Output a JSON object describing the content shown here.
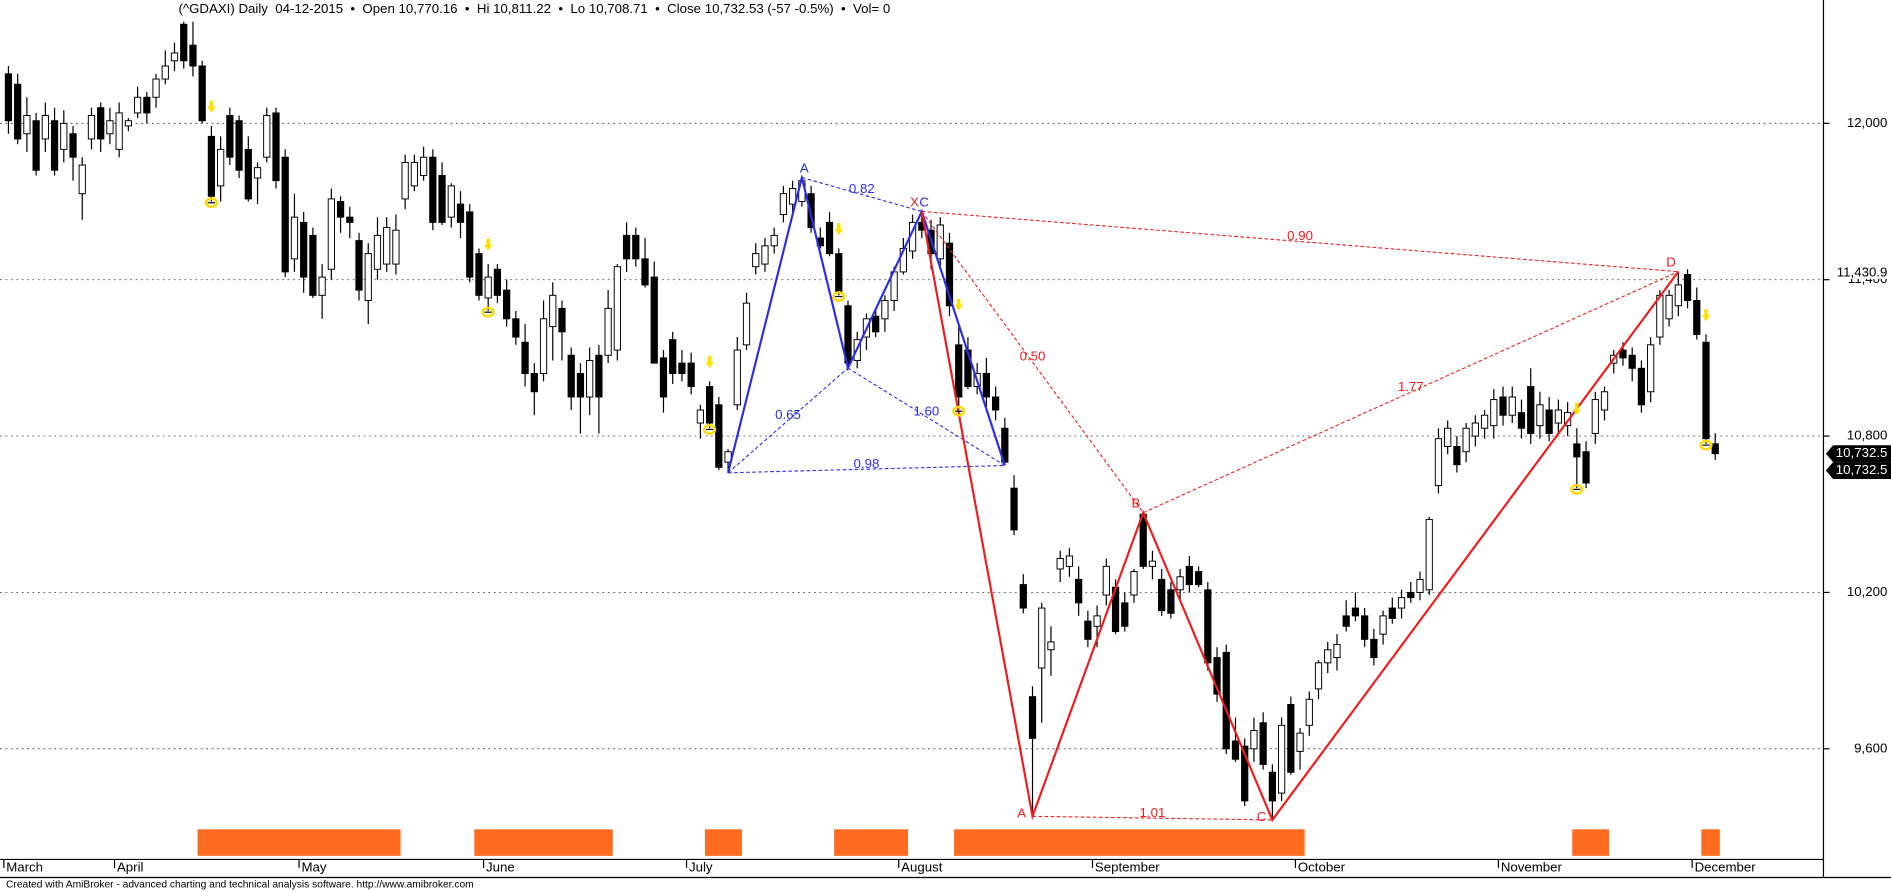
{
  "chart_data": {
    "type": "candlestick",
    "title": "(^GDAXI) Daily  04-12-2015  •  Open 10,770.16  •  Hi 10,811.22  •  Lo 10,708.71  •  Close 10,732.53 (-57 -0.5%)  •  Vol= 0",
    "footer": "Created with AmiBroker - advanced charting and technical analysis software. http://www.amibroker.com",
    "ylim": [
      9180,
      12390
    ],
    "yticks": [
      {
        "value": 9600,
        "label": "9,600"
      },
      {
        "value": 10200,
        "label": "10,200"
      },
      {
        "value": 10800,
        "label": "10,800"
      },
      {
        "value": 11400,
        "label": "11,400"
      },
      {
        "value": 12000,
        "label": "12,000"
      }
    ],
    "grid": true,
    "level_label": {
      "value": 11430.9,
      "label": "11,430.9"
    },
    "last_price_labels": [
      {
        "value": 10732.5,
        "label": "10,732.5"
      },
      {
        "value": 10732.5,
        "label": "10,732.5"
      }
    ],
    "up_color": "#ffffff",
    "down_color": "#000000",
    "categories": [
      "March",
      null,
      null,
      null,
      null,
      null,
      null,
      null,
      null,
      null,
      null,
      null,
      "April",
      null,
      null,
      null,
      null,
      null,
      null,
      null,
      null,
      null,
      null,
      null,
      null,
      null,
      null,
      null,
      null,
      null,
      null,
      null,
      "May",
      null,
      null,
      null,
      null,
      null,
      null,
      null,
      null,
      null,
      null,
      null,
      null,
      null,
      null,
      null,
      null,
      null,
      null,
      null,
      "June",
      null,
      null,
      null,
      null,
      null,
      null,
      null,
      null,
      null,
      null,
      null,
      null,
      null,
      null,
      null,
      null,
      null,
      null,
      null,
      null,
      null,
      "July",
      null,
      null,
      null,
      null,
      null,
      null,
      null,
      null,
      null,
      null,
      null,
      null,
      null,
      null,
      null,
      null,
      null,
      null,
      null,
      null,
      null,
      null,
      "August",
      null,
      null,
      null,
      null,
      null,
      null,
      null,
      null,
      null,
      null,
      null,
      null,
      null,
      null,
      null,
      null,
      null,
      null,
      null,
      null,
      "September",
      null,
      null,
      null,
      null,
      null,
      null,
      null,
      null,
      null,
      null,
      null,
      null,
      null,
      null,
      null,
      null,
      null,
      null,
      null,
      null,
      null,
      "October",
      null,
      null,
      null,
      null,
      null,
      null,
      null,
      null,
      null,
      null,
      null,
      null,
      null,
      null,
      null,
      null,
      null,
      null,
      null,
      null,
      null,
      "November",
      null,
      null,
      null,
      null,
      null,
      null,
      null,
      null,
      null,
      null,
      null,
      null,
      null,
      null,
      null,
      null,
      null,
      null,
      null,
      null,
      "December",
      null,
      null
    ],
    "values": [
      [
        12190,
        12220,
        11960,
        12010
      ],
      [
        12150,
        12190,
        11920,
        11940
      ],
      [
        11960,
        12100,
        11890,
        12030
      ],
      [
        12010,
        12040,
        11800,
        11820
      ],
      [
        11940,
        12080,
        11890,
        12030
      ],
      [
        12010,
        12060,
        11800,
        11820
      ],
      [
        11900,
        12050,
        11850,
        12000
      ],
      [
        11960,
        11990,
        11780,
        11870
      ],
      [
        11730,
        11870,
        11630,
        11840
      ],
      [
        11940,
        12060,
        11900,
        12030
      ],
      [
        12060,
        12080,
        11890,
        11940
      ],
      [
        11960,
        12060,
        11920,
        12010
      ],
      [
        11900,
        12080,
        11870,
        12040
      ],
      [
        11990,
        12020,
        11970,
        12010
      ],
      [
        12040,
        12140,
        12020,
        12100
      ],
      [
        12100,
        12120,
        12000,
        12040
      ],
      [
        12100,
        12190,
        12060,
        12170
      ],
      [
        12170,
        12280,
        12150,
        12220
      ],
      [
        12240,
        12310,
        12200,
        12270
      ],
      [
        12380,
        12390,
        12210,
        12240
      ],
      [
        12300,
        12390,
        12180,
        12220
      ],
      [
        12220,
        12240,
        12000,
        12010
      ],
      [
        11950,
        11990,
        11700,
        11720
      ],
      [
        11760,
        11950,
        11700,
        11900
      ],
      [
        12030,
        12060,
        11840,
        11870
      ],
      [
        12010,
        12030,
        11790,
        11820
      ],
      [
        11900,
        11950,
        11700,
        11710
      ],
      [
        11790,
        11850,
        11690,
        11830
      ],
      [
        11870,
        12060,
        11850,
        12030
      ],
      [
        12040,
        12060,
        11750,
        11780
      ],
      [
        11870,
        11900,
        11410,
        11430
      ],
      [
        11480,
        11730,
        11430,
        11640
      ],
      [
        11620,
        11660,
        11350,
        11410
      ],
      [
        11570,
        11600,
        11330,
        11340
      ],
      [
        11340,
        11460,
        11250,
        11410
      ],
      [
        11440,
        11750,
        11400,
        11710
      ],
      [
        11700,
        11720,
        11580,
        11640
      ],
      [
        11640,
        11680,
        11560,
        11620
      ],
      [
        11550,
        11580,
        11320,
        11360
      ],
      [
        11320,
        11540,
        11230,
        11500
      ],
      [
        11440,
        11640,
        11400,
        11570
      ],
      [
        11460,
        11640,
        11430,
        11600
      ],
      [
        11460,
        11650,
        11420,
        11590
      ],
      [
        11710,
        11880,
        11670,
        11850
      ],
      [
        11760,
        11880,
        11740,
        11850
      ],
      [
        11800,
        11910,
        11780,
        11870
      ],
      [
        11870,
        11900,
        11590,
        11620
      ],
      [
        11800,
        11850,
        11610,
        11620
      ],
      [
        11640,
        11770,
        11600,
        11760
      ],
      [
        11690,
        11740,
        11560,
        11620
      ],
      [
        11660,
        11690,
        11390,
        11410
      ],
      [
        11500,
        11520,
        11320,
        11340
      ],
      [
        11330,
        11460,
        11280,
        11410
      ],
      [
        11440,
        11460,
        11310,
        11340
      ],
      [
        11360,
        11400,
        11220,
        11250
      ],
      [
        11250,
        11280,
        11150,
        11180
      ],
      [
        11160,
        11230,
        10990,
        11040
      ],
      [
        11040,
        11080,
        10880,
        10970
      ],
      [
        11040,
        11320,
        11010,
        11250
      ],
      [
        11220,
        11390,
        11090,
        11340
      ],
      [
        11290,
        11320,
        11090,
        11200
      ],
      [
        11110,
        11140,
        10900,
        10950
      ],
      [
        11040,
        11080,
        10810,
        10950
      ],
      [
        10950,
        11140,
        10880,
        11090
      ],
      [
        11110,
        11150,
        10810,
        10950
      ],
      [
        11110,
        11360,
        11080,
        11290
      ],
      [
        11130,
        11460,
        11090,
        11450
      ],
      [
        11570,
        11620,
        11430,
        11480
      ],
      [
        11570,
        11600,
        11450,
        11480
      ],
      [
        11480,
        11560,
        11370,
        11380
      ],
      [
        11410,
        11470,
        11080,
        11080
      ],
      [
        11100,
        11130,
        10890,
        10950
      ],
      [
        11170,
        11200,
        11000,
        11040
      ],
      [
        11080,
        11130,
        11010,
        11040
      ],
      [
        11080,
        11120,
        10960,
        10990
      ],
      [
        10850,
        10920,
        10790,
        10900
      ],
      [
        10990,
        11010,
        10830,
        10850
      ],
      [
        10920,
        10950,
        10670,
        10680
      ],
      [
        10700,
        10750,
        10660,
        10740
      ],
      [
        10920,
        11180,
        10900,
        11130
      ],
      [
        11150,
        11350,
        11130,
        11310
      ],
      [
        11450,
        11540,
        11420,
        11500
      ],
      [
        11460,
        11560,
        11430,
        11530
      ],
      [
        11530,
        11600,
        11500,
        11570
      ],
      [
        11650,
        11760,
        11620,
        11730
      ],
      [
        11690,
        11780,
        11660,
        11750
      ],
      [
        11700,
        11800,
        11680,
        11780
      ],
      [
        11730,
        11760,
        11580,
        11600
      ],
      [
        11560,
        11600,
        11520,
        11530
      ],
      [
        11620,
        11660,
        11490,
        11500
      ],
      [
        11500,
        11520,
        11340,
        11350
      ],
      [
        11300,
        11320,
        11060,
        11080
      ],
      [
        11090,
        11200,
        11060,
        11170
      ],
      [
        11180,
        11270,
        11130,
        11250
      ],
      [
        11260,
        11290,
        11180,
        11200
      ],
      [
        11250,
        11340,
        11200,
        11320
      ],
      [
        11320,
        11450,
        11280,
        11430
      ],
      [
        11430,
        11560,
        11420,
        11520
      ],
      [
        11510,
        11650,
        11480,
        11620
      ],
      [
        11620,
        11660,
        11560,
        11590
      ],
      [
        11590,
        11630,
        11440,
        11500
      ],
      [
        11480,
        11640,
        11440,
        11610
      ],
      [
        11540,
        11580,
        11260,
        11300
      ],
      [
        11150,
        11230,
        10900,
        10950
      ],
      [
        11130,
        11180,
        10980,
        10990
      ],
      [
        10990,
        11080,
        10960,
        11040
      ],
      [
        11040,
        11100,
        10900,
        10950
      ],
      [
        10950,
        10990,
        10860,
        10900
      ],
      [
        10830,
        10870,
        10690,
        10700
      ],
      [
        10600,
        10650,
        10420,
        10440
      ],
      [
        10230,
        10270,
        10120,
        10140
      ],
      [
        9800,
        9840,
        9340,
        9640
      ],
      [
        9910,
        10160,
        9700,
        10140
      ],
      [
        9980,
        10070,
        9880,
        10010
      ],
      [
        10290,
        10360,
        10240,
        10330
      ],
      [
        10300,
        10370,
        10260,
        10340
      ],
      [
        10250,
        10300,
        10110,
        10160
      ],
      [
        10090,
        10130,
        9990,
        10020
      ],
      [
        10070,
        10150,
        9990,
        10110
      ],
      [
        10190,
        10330,
        10150,
        10300
      ],
      [
        10220,
        10250,
        10040,
        10050
      ],
      [
        10160,
        10200,
        10050,
        10070
      ],
      [
        10190,
        10290,
        10160,
        10280
      ],
      [
        10500,
        10510,
        10290,
        10300
      ],
      [
        10300,
        10360,
        10250,
        10320
      ],
      [
        10250,
        10290,
        10110,
        10130
      ],
      [
        10210,
        10240,
        10100,
        10120
      ],
      [
        10210,
        10290,
        10170,
        10260
      ],
      [
        10300,
        10340,
        10200,
        10230
      ],
      [
        10280,
        10300,
        10220,
        10230
      ],
      [
        10210,
        10240,
        9900,
        9930
      ],
      [
        9950,
        9990,
        9780,
        9810
      ],
      [
        9970,
        10000,
        9580,
        9600
      ],
      [
        9630,
        9720,
        9550,
        9560
      ],
      [
        9610,
        9640,
        9380,
        9400
      ],
      [
        9600,
        9720,
        9550,
        9670
      ],
      [
        9700,
        9740,
        9520,
        9540
      ],
      [
        9510,
        9540,
        9330,
        9400
      ],
      [
        9430,
        9720,
        9400,
        9690
      ],
      [
        9770,
        9800,
        9500,
        9510
      ],
      [
        9590,
        9680,
        9520,
        9660
      ],
      [
        9690,
        9820,
        9650,
        9790
      ],
      [
        9830,
        9940,
        9790,
        9930
      ],
      [
        9930,
        10010,
        9890,
        9980
      ],
      [
        9950,
        10040,
        9900,
        10000
      ],
      [
        10110,
        10170,
        10050,
        10070
      ],
      [
        10140,
        10200,
        10090,
        10110
      ],
      [
        10110,
        10140,
        9990,
        10020
      ],
      [
        10020,
        10060,
        9920,
        9950
      ],
      [
        10040,
        10130,
        10000,
        10110
      ],
      [
        10140,
        10180,
        10080,
        10100
      ],
      [
        10140,
        10210,
        10100,
        10180
      ],
      [
        10200,
        10240,
        10160,
        10180
      ],
      [
        10200,
        10280,
        10170,
        10250
      ],
      [
        10210,
        10490,
        10190,
        10480
      ],
      [
        10610,
        10830,
        10580,
        10790
      ],
      [
        10760,
        10860,
        10730,
        10830
      ],
      [
        10760,
        10800,
        10660,
        10690
      ],
      [
        10740,
        10850,
        10700,
        10830
      ],
      [
        10800,
        10880,
        10760,
        10850
      ],
      [
        10830,
        10900,
        10790,
        10880
      ],
      [
        10840,
        10980,
        10790,
        10940
      ],
      [
        10950,
        10990,
        10840,
        10880
      ],
      [
        10880,
        10990,
        10850,
        10950
      ],
      [
        10890,
        10940,
        10790,
        10830
      ],
      [
        10990,
        11060,
        10770,
        10810
      ],
      [
        10840,
        10970,
        10790,
        10920
      ],
      [
        10900,
        10950,
        10780,
        10810
      ],
      [
        10850,
        10940,
        10810,
        10900
      ],
      [
        10840,
        10930,
        10800,
        10890
      ],
      [
        10770,
        10830,
        10600,
        10720
      ],
      [
        10740,
        10780,
        10600,
        10620
      ],
      [
        10810,
        10970,
        10770,
        10940
      ],
      [
        10900,
        10990,
        10860,
        10970
      ],
      [
        11080,
        11130,
        11040,
        11110
      ],
      [
        11130,
        11160,
        11070,
        11100
      ],
      [
        11110,
        11140,
        11010,
        11060
      ],
      [
        11060,
        11090,
        10890,
        10920
      ],
      [
        10970,
        11180,
        10930,
        11150
      ],
      [
        11180,
        11360,
        11150,
        11340
      ],
      [
        11250,
        11360,
        11220,
        11340
      ],
      [
        11300,
        11431,
        11260,
        11380
      ],
      [
        11420,
        11440,
        11290,
        11320
      ],
      [
        11320,
        11370,
        11170,
        11190
      ],
      [
        11160,
        11190,
        10770,
        10790
      ],
      [
        10770.16,
        10811.22,
        10708.71,
        10732.53
      ]
    ],
    "signal_bands": [
      [
        21,
        42
      ],
      [
        51,
        65
      ],
      [
        76,
        79
      ],
      [
        90,
        97
      ],
      [
        103,
        140
      ],
      [
        170,
        173
      ],
      [
        184,
        185
      ]
    ],
    "signal_band_color": "#ff6b1f",
    "signal_bars": [
      22,
      52,
      76,
      90,
      103,
      170,
      184
    ],
    "patterns": [
      {
        "color": "#2a2ee0",
        "points": [
          [
            78,
            10659
          ],
          [
            86,
            11792
          ],
          [
            91,
            11061
          ],
          [
            99,
            11662
          ],
          [
            108,
            10687
          ]
        ],
        "point_labels": [
          null,
          "A",
          null,
          "C",
          null
        ],
        "ratios": [
          "0.65",
          "0.82",
          "1.60",
          "0.98"
        ]
      },
      {
        "color": "#ee1c1c",
        "points": [
          [
            99,
            11662
          ],
          [
            111,
            9341
          ],
          [
            123,
            10506
          ],
          [
            137,
            9327
          ],
          [
            181,
            11430.9
          ]
        ],
        "point_labels": [
          "X",
          "A",
          "B",
          "C",
          "D"
        ],
        "ratios": [
          "0.50",
          "1.01",
          "1.77",
          "0.90"
        ]
      }
    ]
  }
}
